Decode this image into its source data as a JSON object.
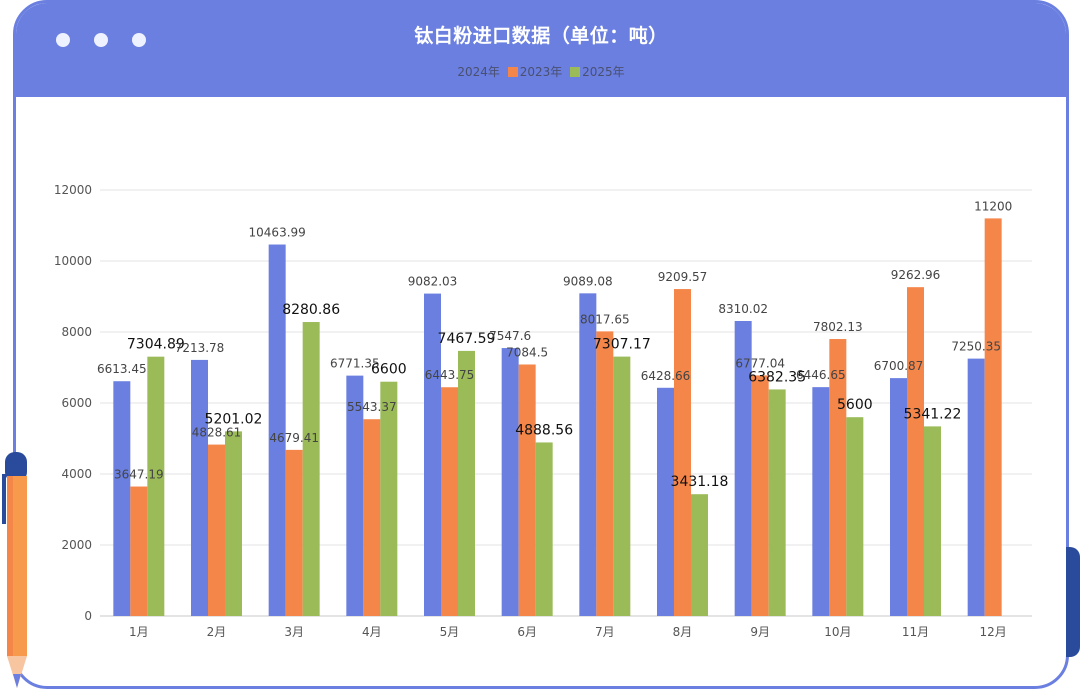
{
  "chart_data": {
    "type": "bar",
    "title": "钛白粉进口数据（单位：吨）",
    "categories": [
      "1月",
      "2月",
      "3月",
      "4月",
      "5月",
      "6月",
      "7月",
      "8月",
      "9月",
      "10月",
      "11月",
      "12月"
    ],
    "ylim": [
      0,
      12000
    ],
    "yticks": [
      0,
      2000,
      4000,
      6000,
      8000,
      10000,
      12000
    ],
    "grid": true,
    "legend_position": "top",
    "series": [
      {
        "name": "2024年",
        "color": "#6a7fe0",
        "values": [
          6613.45,
          7213.78,
          10463.99,
          6771.35,
          9082.03,
          7547.6,
          9089.08,
          6428.66,
          8310.02,
          6446.65,
          6700.87,
          7250.35
        ],
        "labels": [
          "6613.45",
          "7213.78",
          "10463.99",
          "6771.35",
          "9082.03",
          "7547.6",
          "9089.08",
          "6428.66",
          "8310.02",
          "6446.65",
          "6700.87",
          "7250.35"
        ]
      },
      {
        "name": "2023年",
        "color": "#f4864a",
        "values": [
          3647.19,
          4828.61,
          4679.41,
          5543.37,
          6443.75,
          7084.5,
          8017.65,
          9209.57,
          6777.04,
          7802.13,
          9262.96,
          11200
        ],
        "labels": [
          "3647.19",
          "4828.61",
          "4679.41",
          "5543.37",
          "6443.75",
          "7084.5",
          "8017.65",
          "9209.57",
          "6777.04",
          "7802.13",
          "9262.96",
          "11200"
        ]
      },
      {
        "name": "2025年",
        "color": "#9bbb59",
        "values": [
          7304.89,
          5201.02,
          8280.86,
          6600,
          7467.59,
          4888.56,
          7307.17,
          3431.18,
          6382.35,
          5600,
          5341.22,
          null
        ],
        "labels": [
          "7304.89",
          "5201.02",
          "8280.86",
          "6600",
          "7467.59",
          "4888.56",
          "7307.17",
          "3431.18",
          "6382.35",
          "5600",
          "5341.22",
          ""
        ]
      }
    ]
  }
}
